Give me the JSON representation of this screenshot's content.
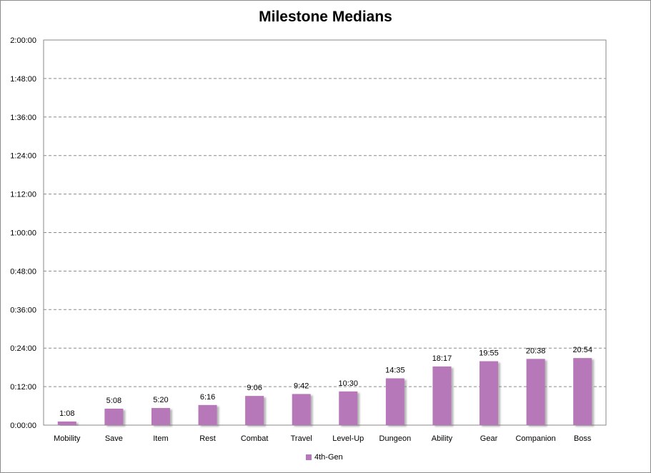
{
  "chart_data": {
    "type": "bar",
    "title": "Milestone Medians",
    "xlabel": "",
    "ylabel": "",
    "categories": [
      "Mobility",
      "Save",
      "Item",
      "Rest",
      "Combat",
      "Travel",
      "Level-Up",
      "Dungeon",
      "Ability",
      "Gear",
      "Companion",
      "Boss"
    ],
    "series": [
      {
        "name": "4th-Gen",
        "color": "#b678b8",
        "values_seconds": [
          68,
          308,
          320,
          376,
          546,
          582,
          630,
          875,
          1097,
          1195,
          1238,
          1254
        ],
        "labels": [
          "1:08",
          "5:08",
          "5:20",
          "6:16",
          "9:06",
          "9:42",
          "10:30",
          "14:35",
          "18:17",
          "19:55",
          "20:38",
          "20:54"
        ]
      }
    ],
    "ylim_seconds": [
      0,
      7200
    ],
    "ytick_step_seconds": 720,
    "ytick_labels": [
      "0:00:00",
      "0:12:00",
      "0:24:00",
      "0:36:00",
      "0:48:00",
      "1:00:00",
      "1:12:00",
      "1:24:00",
      "1:36:00",
      "1:48:00",
      "2:00:00"
    ],
    "grid": "horizontal dashed",
    "legend": "bottom"
  }
}
